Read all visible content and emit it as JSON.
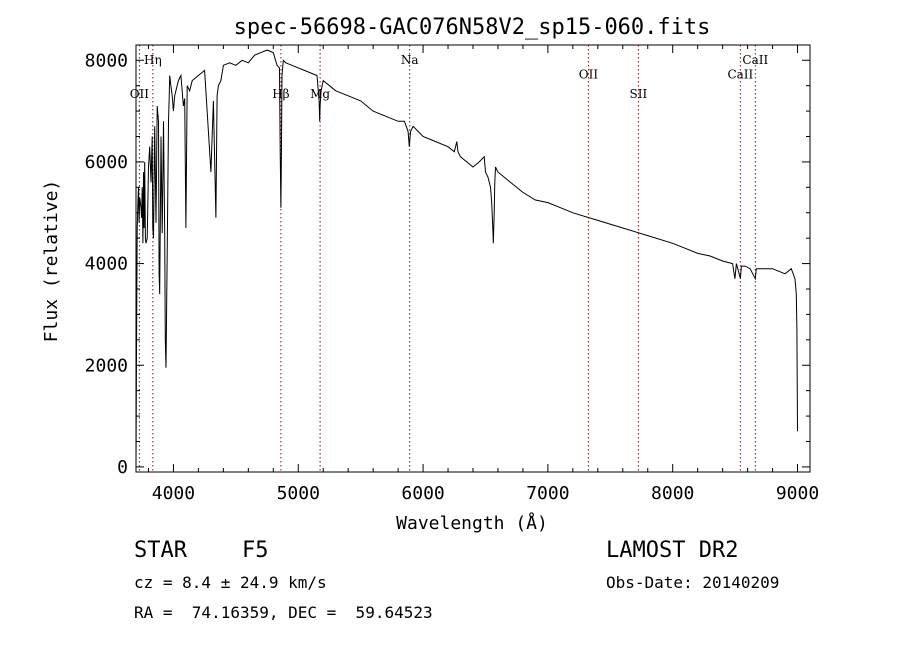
{
  "chart_data": {
    "type": "line",
    "title": "spec-56698-GAC076N58V2_sp15-060.fits",
    "xlabel": "Wavelength (Å)",
    "ylabel": "Flux (relative)",
    "xlim": [
      3700,
      9100
    ],
    "ylim": [
      -100,
      8300
    ],
    "xticks": [
      4000,
      5000,
      6000,
      7000,
      8000,
      9000
    ],
    "xtick_labels": [
      "4000",
      "5000",
      "6000",
      "7000",
      "8000",
      "9000"
    ],
    "yticks": [
      0,
      2000,
      4000,
      6000,
      8000
    ],
    "ytick_labels": [
      "0",
      "2000",
      "4000",
      "6000",
      "8000"
    ],
    "grid": false,
    "series": [
      {
        "name": "spectrum",
        "x": [
          3700,
          3705,
          3710,
          3715,
          3720,
          3725,
          3730,
          3735,
          3740,
          3745,
          3750,
          3755,
          3760,
          3765,
          3770,
          3775,
          3780,
          3790,
          3800,
          3810,
          3820,
          3830,
          3835,
          3840,
          3850,
          3860,
          3870,
          3880,
          3885,
          3890,
          3900,
          3910,
          3920,
          3930,
          3935,
          3940,
          3950,
          3960,
          3965,
          3970,
          3980,
          3990,
          4000,
          4010,
          4020,
          4040,
          4060,
          4080,
          4090,
          4100,
          4110,
          4130,
          4150,
          4200,
          4250,
          4280,
          4300,
          4320,
          4340,
          4350,
          4360,
          4380,
          4400,
          4450,
          4500,
          4550,
          4600,
          4650,
          4700,
          4750,
          4800,
          4830,
          4850,
          4855,
          4861,
          4865,
          4870,
          4880,
          4900,
          4950,
          5000,
          5050,
          5100,
          5150,
          5167,
          5172,
          5175,
          5183,
          5200,
          5250,
          5300,
          5400,
          5500,
          5600,
          5700,
          5800,
          5850,
          5880,
          5890,
          5896,
          5900,
          5920,
          6000,
          6100,
          6200,
          6250,
          6270,
          6280,
          6300,
          6400,
          6450,
          6490,
          6500,
          6520,
          6540,
          6550,
          6560,
          6563,
          6570,
          6575,
          6580,
          6600,
          6700,
          6800,
          6900,
          7000,
          7100,
          7200,
          7400,
          7600,
          7800,
          8000,
          8100,
          8200,
          8300,
          8400,
          8480,
          8498,
          8510,
          8542,
          8550,
          8580,
          8620,
          8662,
          8670,
          8700,
          8800,
          8900,
          8950,
          8980,
          8990,
          8995,
          9000
        ],
        "values": [
          0,
          2600,
          4700,
          5200,
          5500,
          4800,
          5300,
          5200,
          5100,
          4900,
          5500,
          4400,
          5800,
          4700,
          6000,
          4500,
          4400,
          4500,
          5900,
          6300,
          5600,
          6500,
          4700,
          4500,
          6700,
          4800,
          7100,
          6800,
          3800,
          3400,
          6500,
          4600,
          6800,
          4600,
          2500,
          1950,
          4200,
          6800,
          7200,
          7700,
          7500,
          7300,
          7000,
          7300,
          7400,
          7600,
          7700,
          7100,
          7250,
          4700,
          7500,
          7400,
          7600,
          7700,
          7800,
          6600,
          5800,
          7200,
          4900,
          7300,
          7500,
          7600,
          7900,
          7950,
          7900,
          8000,
          7950,
          8100,
          8150,
          8200,
          8150,
          7900,
          7850,
          6200,
          5100,
          6100,
          7700,
          8000,
          7950,
          7900,
          7850,
          7800,
          7750,
          7700,
          7200,
          6800,
          7100,
          7400,
          7600,
          7500,
          7400,
          7300,
          7200,
          7000,
          6900,
          6800,
          6800,
          6600,
          6300,
          6500,
          6600,
          6700,
          6500,
          6400,
          6300,
          6200,
          6400,
          6200,
          6100,
          5900,
          6000,
          6100,
          5800,
          5700,
          5500,
          5200,
          4600,
          4400,
          5000,
          5600,
          5900,
          5800,
          5600,
          5400,
          5250,
          5200,
          5100,
          5000,
          4850,
          4700,
          4550,
          4400,
          4300,
          4200,
          4150,
          4050,
          4000,
          3700,
          4000,
          3700,
          3950,
          3950,
          3900,
          3700,
          3900,
          3900,
          3900,
          3800,
          3900,
          3700,
          3400,
          2700,
          700
        ]
      }
    ],
    "lines": [
      {
        "name": "OII",
        "wavelength": 3727,
        "label_flux": 7260
      },
      {
        "name": "Hη",
        "wavelength": 3835,
        "label_flux": 7930
      },
      {
        "name": "Hβ",
        "wavelength": 4861,
        "label_flux": 7260
      },
      {
        "name": "Mg",
        "wavelength": 5175,
        "label_flux": 7260
      },
      {
        "name": "Na",
        "wavelength": 5893,
        "label_flux": 7930
      },
      {
        "name": "OII",
        "wavelength": 7325,
        "label_flux": 7640
      },
      {
        "name": "SII",
        "wavelength": 7725,
        "label_flux": 7260
      },
      {
        "name": "CaII",
        "wavelength": 8542,
        "label_flux": 7640
      },
      {
        "name": "CaII",
        "wavelength": 8662,
        "label_flux": 7930
      }
    ]
  },
  "info": {
    "object_class": "STAR",
    "subclass": "F5",
    "redshift": "cz = 8.4 ± 24.9 km/s",
    "coords": "RA =  74.16359, DEC =  59.64523",
    "survey": "LAMOST DR2",
    "obs_date": "Obs-Date: 20140209"
  },
  "colors": {
    "line": "#000000",
    "marker": "#aa0000"
  }
}
